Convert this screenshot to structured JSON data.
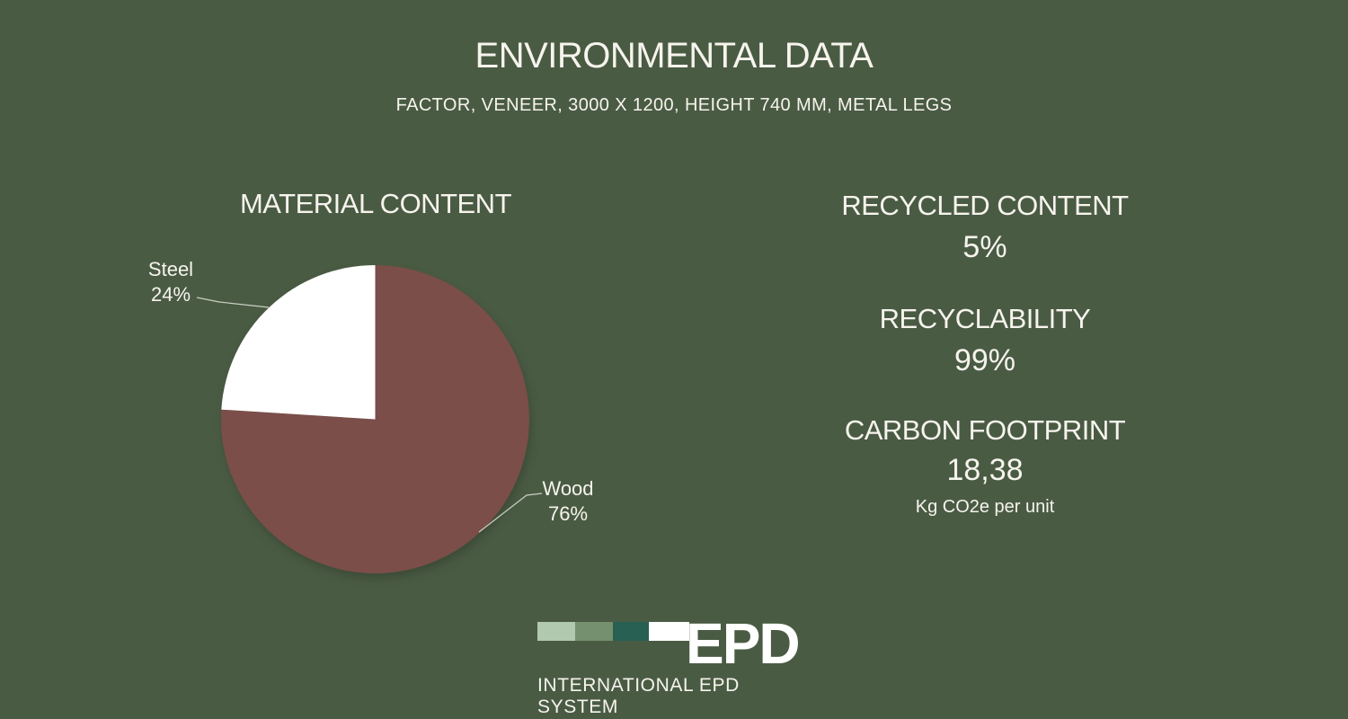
{
  "theme": {
    "background": "#4a5b44",
    "text": "#f6f4ed",
    "leader_line": "#c9cfc3"
  },
  "header": {
    "title": "ENVIRONMENTAL DATA",
    "subtitle": "FACTOR, VENEER, 3000 X 1200, HEIGHT 740 MM, METAL LEGS"
  },
  "chart_data": {
    "type": "pie",
    "title": "MATERIAL CONTENT",
    "slices": [
      {
        "label": "Wood",
        "value": 76,
        "pct_label": "76%",
        "color": "#7b4e49"
      },
      {
        "label": "Steel",
        "value": 24,
        "pct_label": "24%",
        "color": "#ffffff"
      }
    ],
    "start_angle_deg": 0,
    "direction": "clockwise",
    "labels": "outside-callouts-with-leader-lines",
    "legend_position": "none"
  },
  "stats": [
    {
      "label": "RECYCLED CONTENT",
      "value": "5%"
    },
    {
      "label": "RECYCLABILITY",
      "value": "99%"
    },
    {
      "label": "CARBON FOOTPRINT",
      "value": "18,38",
      "unit": "Kg CO2e per unit"
    }
  ],
  "logo": {
    "name": "EPD",
    "caption": "INTERNATIONAL EPD SYSTEM",
    "squares": [
      "#b1c9af",
      "#75906e",
      "#286053",
      "#ffffff"
    ]
  }
}
